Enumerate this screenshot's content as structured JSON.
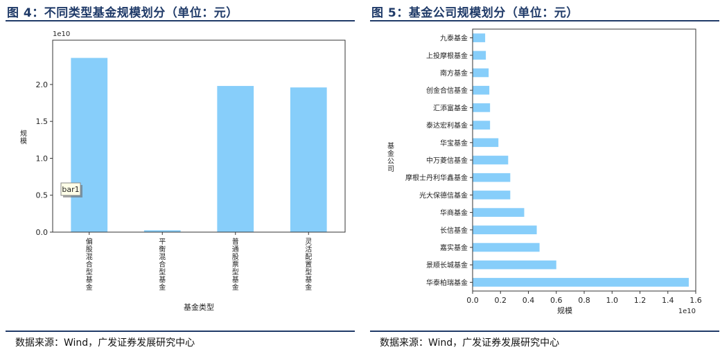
{
  "left": {
    "title": "图 4：不同类型基金规模划分（单位：元）",
    "source": "数据来源：Wind，广发证券发展研究中心",
    "tooltip": "bar1"
  },
  "right": {
    "title": "图 5：基金公司规模划分（单位：元）",
    "source": "数据来源：Wind，广发证券发展研究中心"
  },
  "colors": {
    "bar": "#87cefa",
    "title": "#1f3a68",
    "rule": "#1f3a68"
  },
  "chart_data": [
    {
      "type": "bar",
      "orientation": "vertical",
      "categories": [
        "偏股混合型基金",
        "平衡混合型基金",
        "普通股票型基金",
        "灵活配置型基金"
      ],
      "values": [
        23600000000,
        250000000,
        19800000000,
        19600000000
      ],
      "xlabel": "基金类型",
      "ylabel": "规模",
      "ylim": [
        0,
        26000000000.0
      ],
      "yticks": [
        0,
        0.5,
        1.0,
        1.5,
        2.0
      ],
      "ytick_labels": [
        "0.0",
        "0.5",
        "1.0",
        "1.5",
        "2.0"
      ],
      "offset_label": "1e10",
      "grid": false
    },
    {
      "type": "bar",
      "orientation": "horizontal",
      "categories": [
        "华泰柏瑞基金",
        "景顺长城基金",
        "嘉实基金",
        "长信基金",
        "华商基金",
        "光大保德信基金",
        "摩根士丹利华鑫基金",
        "中万菱信基金",
        "华宝基金",
        "泰达宏利基金",
        "汇添富基金",
        "创金合信基金",
        "南方基金",
        "上投摩根基金",
        "九泰基金"
      ],
      "values": [
        15500000000,
        6000000000,
        4800000000,
        4600000000,
        3700000000,
        2700000000,
        2700000000,
        2550000000,
        1850000000,
        1250000000,
        1250000000,
        1200000000,
        1150000000,
        950000000,
        900000000
      ],
      "xlabel": "规模",
      "ylabel": "基金公司",
      "xlim": [
        0,
        16000000000.0
      ],
      "xticks": [
        0,
        0.2,
        0.4,
        0.6,
        0.8,
        1.0,
        1.2,
        1.4,
        1.6
      ],
      "xtick_labels": [
        "0.0",
        "0.2",
        "0.4",
        "0.6",
        "0.8",
        "1.0",
        "1.2",
        "1.4",
        "1.6"
      ],
      "offset_label": "1e10",
      "grid": false
    }
  ]
}
